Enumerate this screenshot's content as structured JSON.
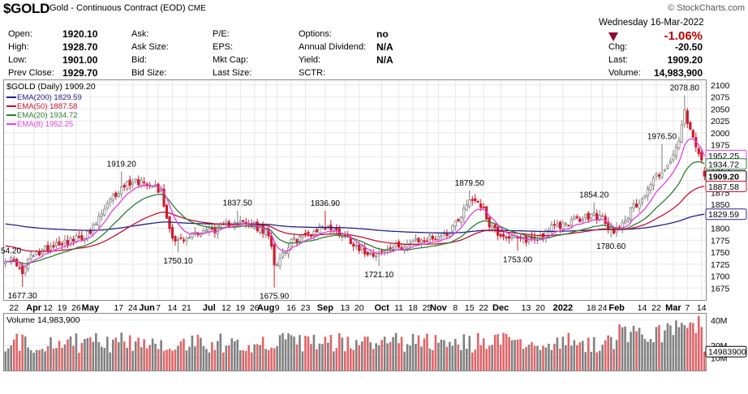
{
  "header": {
    "symbol": "$GOLD",
    "description": "Gold - Continuous Contract (EOD)",
    "exchange": "CME",
    "brand": "© StockCharts.com"
  },
  "quote": {
    "open_label": "Open:",
    "open": "1920.10",
    "high_label": "High:",
    "high": "1928.70",
    "low_label": "Low:",
    "low": "1901.00",
    "prevclose_label": "Prev Close:",
    "prevclose": "1929.70",
    "ask_label": "Ask:",
    "asksize_label": "Ask Size:",
    "bid_label": "Bid:",
    "bidsize_label": "Bid Size:",
    "pe_label": "P/E:",
    "eps_label": "EPS:",
    "mktcap_label": "Mkt Cap:",
    "lastsize_label": "Last Size:",
    "options_label": "Options:",
    "options": "no",
    "anndiv_label": "Annual Dividend:",
    "anndiv": "N/A",
    "yield_label": "Yield:",
    "yield": "N/A",
    "sctr_label": "SCTR:",
    "date": "Wednesday  16-Mar-2022",
    "chg_pct": "-1.06%",
    "chg_label": "Chg:",
    "chg": "-20.50",
    "last_label": "Last:",
    "last": "1909.20",
    "volume_label": "Volume:",
    "volume": "14,983,900"
  },
  "legend": {
    "price": "$GOLD (Daily) 1909.20",
    "ema200": "EMA(200) 1829.59",
    "ema50": "EMA(50) 1887.58",
    "ema20": "EMA(20) 1934.72",
    "ema8": "EMA(8) 1952.25",
    "volume": "Volume 14,983,900"
  },
  "colors": {
    "up": "#7f7f7f",
    "down": "#d11a2a",
    "ema200": "#22228a",
    "ema50": "#c8102e",
    "ema20": "#2e7d32",
    "ema8": "#e040e0",
    "vol_up": "#808080",
    "vol_down": "#e06468"
  },
  "chart_data": {
    "type": "candlestick",
    "ylim": [
      1650,
      2110
    ],
    "yticks": [
      1675,
      1700,
      1725,
      1750,
      1775,
      1800,
      1825,
      1850,
      1875,
      1900,
      1925,
      1950,
      1975,
      2000,
      2025,
      2050,
      2075,
      2100
    ],
    "right_labels": [
      "1952.25",
      "1934.72",
      "1909.20",
      "1887.58",
      "1829.59"
    ],
    "right_label_values": [
      1952.25,
      1934.72,
      1909.2,
      1887.58,
      1829.59
    ],
    "xlabels": [
      {
        "t": "22",
        "bar": 3,
        "bold": false
      },
      {
        "t": "Apr",
        "bar": 10,
        "bold": true
      },
      {
        "t": "12",
        "bar": 15,
        "bold": false
      },
      {
        "t": "19",
        "bar": 20,
        "bold": false
      },
      {
        "t": "26",
        "bar": 25,
        "bold": false
      },
      {
        "t": "May",
        "bar": 30,
        "bold": true
      },
      {
        "t": "17",
        "bar": 40,
        "bold": false
      },
      {
        "t": "24",
        "bar": 45,
        "bold": false
      },
      {
        "t": "Jun",
        "bar": 50,
        "bold": true
      },
      {
        "t": "7",
        "bar": 54,
        "bold": false
      },
      {
        "t": "14",
        "bar": 59,
        "bold": false
      },
      {
        "t": "21",
        "bar": 64,
        "bold": false
      },
      {
        "t": "Jul",
        "bar": 72,
        "bold": true
      },
      {
        "t": "12",
        "bar": 78,
        "bold": false
      },
      {
        "t": "19",
        "bar": 83,
        "bold": false
      },
      {
        "t": "26",
        "bar": 88,
        "bold": false
      },
      {
        "t": "Aug",
        "bar": 92,
        "bold": true
      },
      {
        "t": "9",
        "bar": 96,
        "bold": false
      },
      {
        "t": "16",
        "bar": 101,
        "bold": false
      },
      {
        "t": "23",
        "bar": 106,
        "bold": false
      },
      {
        "t": "Sep",
        "bar": 113,
        "bold": true
      },
      {
        "t": "13",
        "bar": 120,
        "bold": false
      },
      {
        "t": "20",
        "bar": 125,
        "bold": false
      },
      {
        "t": "Oct",
        "bar": 133,
        "bold": true
      },
      {
        "t": "11",
        "bar": 139,
        "bold": false
      },
      {
        "t": "18",
        "bar": 144,
        "bold": false
      },
      {
        "t": "25",
        "bar": 149,
        "bold": false
      },
      {
        "t": "Nov",
        "bar": 153,
        "bold": true
      },
      {
        "t": "8",
        "bar": 159,
        "bold": false
      },
      {
        "t": "15",
        "bar": 164,
        "bold": false
      },
      {
        "t": "22",
        "bar": 169,
        "bold": false
      },
      {
        "t": "Dec",
        "bar": 175,
        "bold": true
      },
      {
        "t": "13",
        "bar": 184,
        "bold": false
      },
      {
        "t": "20",
        "bar": 189,
        "bold": false
      },
      {
        "t": "2022",
        "bar": 197,
        "bold": true
      },
      {
        "t": "18",
        "bar": 207,
        "bold": false
      },
      {
        "t": "24",
        "bar": 211,
        "bold": false
      },
      {
        "t": "Feb",
        "bar": 216,
        "bold": true
      },
      {
        "t": "14",
        "bar": 225,
        "bold": false
      },
      {
        "t": "22",
        "bar": 230,
        "bold": false
      },
      {
        "t": "Mar",
        "bar": 236,
        "bold": true
      },
      {
        "t": "7",
        "bar": 241,
        "bold": false
      },
      {
        "t": "14",
        "bar": 246,
        "bold": false
      }
    ],
    "annotations": [
      {
        "text": "1677.30",
        "bar": 6,
        "value": 1677.3,
        "pos": "below"
      },
      {
        "text": "1919.20",
        "bar": 41,
        "value": 1919.2,
        "pos": "above"
      },
      {
        "text": "1750.10",
        "bar": 61,
        "value": 1750.1,
        "pos": "below"
      },
      {
        "text": "1837.50",
        "bar": 82,
        "value": 1837.5,
        "pos": "above"
      },
      {
        "text": "1675.90",
        "bar": 95,
        "value": 1675.9,
        "pos": "below"
      },
      {
        "text": "1836.90",
        "bar": 113,
        "value": 1836.9,
        "pos": "above"
      },
      {
        "text": "1721.10",
        "bar": 132,
        "value": 1721.1,
        "pos": "below"
      },
      {
        "text": "1879.50",
        "bar": 164,
        "value": 1879.5,
        "pos": "above"
      },
      {
        "text": "1753.00",
        "bar": 181,
        "value": 1753.0,
        "pos": "below"
      },
      {
        "text": "1854.20",
        "bar": 208,
        "value": 1854.2,
        "pos": "above"
      },
      {
        "text": "1780.60",
        "bar": 214,
        "value": 1780.6,
        "pos": "below"
      },
      {
        "text": "1976.50",
        "bar": 232,
        "value": 1976.5,
        "pos": "above"
      },
      {
        "text": "2078.80",
        "bar": 240,
        "value": 2078.8,
        "pos": "above"
      }
    ],
    "left_cut_label": "54.20",
    "left_cut_value": 1754.2,
    "anchors": [
      [
        0,
        1738
      ],
      [
        4,
        1728
      ],
      [
        6,
        1700
      ],
      [
        8,
        1735
      ],
      [
        12,
        1750
      ],
      [
        18,
        1770
      ],
      [
        24,
        1775
      ],
      [
        30,
        1790
      ],
      [
        34,
        1830
      ],
      [
        38,
        1865
      ],
      [
        42,
        1890
      ],
      [
        45,
        1900
      ],
      [
        48,
        1898
      ],
      [
        52,
        1895
      ],
      [
        55,
        1875
      ],
      [
        58,
        1800
      ],
      [
        60,
        1775
      ],
      [
        64,
        1775
      ],
      [
        66,
        1790
      ],
      [
        70,
        1795
      ],
      [
        76,
        1800
      ],
      [
        81,
        1818
      ],
      [
        84,
        1810
      ],
      [
        88,
        1805
      ],
      [
        92,
        1790
      ],
      [
        94,
        1770
      ],
      [
        95,
        1725
      ],
      [
        97,
        1740
      ],
      [
        100,
        1765
      ],
      [
        104,
        1782
      ],
      [
        108,
        1790
      ],
      [
        112,
        1805
      ],
      [
        115,
        1800
      ],
      [
        118,
        1792
      ],
      [
        122,
        1775
      ],
      [
        126,
        1755
      ],
      [
        130,
        1748
      ],
      [
        133,
        1750
      ],
      [
        137,
        1760
      ],
      [
        141,
        1765
      ],
      [
        144,
        1770
      ],
      [
        148,
        1775
      ],
      [
        152,
        1782
      ],
      [
        156,
        1790
      ],
      [
        160,
        1820
      ],
      [
        164,
        1860
      ],
      [
        166,
        1862
      ],
      [
        168,
        1850
      ],
      [
        171,
        1810
      ],
      [
        174,
        1790
      ],
      [
        178,
        1782
      ],
      [
        182,
        1775
      ],
      [
        185,
        1778
      ],
      [
        188,
        1780
      ],
      [
        192,
        1800
      ],
      [
        196,
        1805
      ],
      [
        200,
        1815
      ],
      [
        204,
        1820
      ],
      [
        208,
        1828
      ],
      [
        211,
        1820
      ],
      [
        213,
        1800
      ],
      [
        215,
        1795
      ],
      [
        218,
        1810
      ],
      [
        222,
        1845
      ],
      [
        226,
        1870
      ],
      [
        229,
        1905
      ],
      [
        232,
        1920
      ],
      [
        235,
        1935
      ],
      [
        238,
        1985
      ],
      [
        240,
        2040
      ],
      [
        242,
        2000
      ],
      [
        244,
        1975
      ],
      [
        246,
        1935
      ],
      [
        247,
        1909.2
      ]
    ],
    "n_bars": 248,
    "seed": 17,
    "ema_values": {
      "ema200": 1829.59,
      "ema50": 1887.58,
      "ema20": 1934.72,
      "ema8": 1952.25
    },
    "volume": {
      "ylim": [
        0,
        45000000
      ],
      "yticks": [
        10000000,
        20000000,
        40000000
      ],
      "ytick_labels": [
        "10M",
        "20M",
        "40M"
      ],
      "last": 14983900,
      "last_label": "14983900"
    }
  }
}
